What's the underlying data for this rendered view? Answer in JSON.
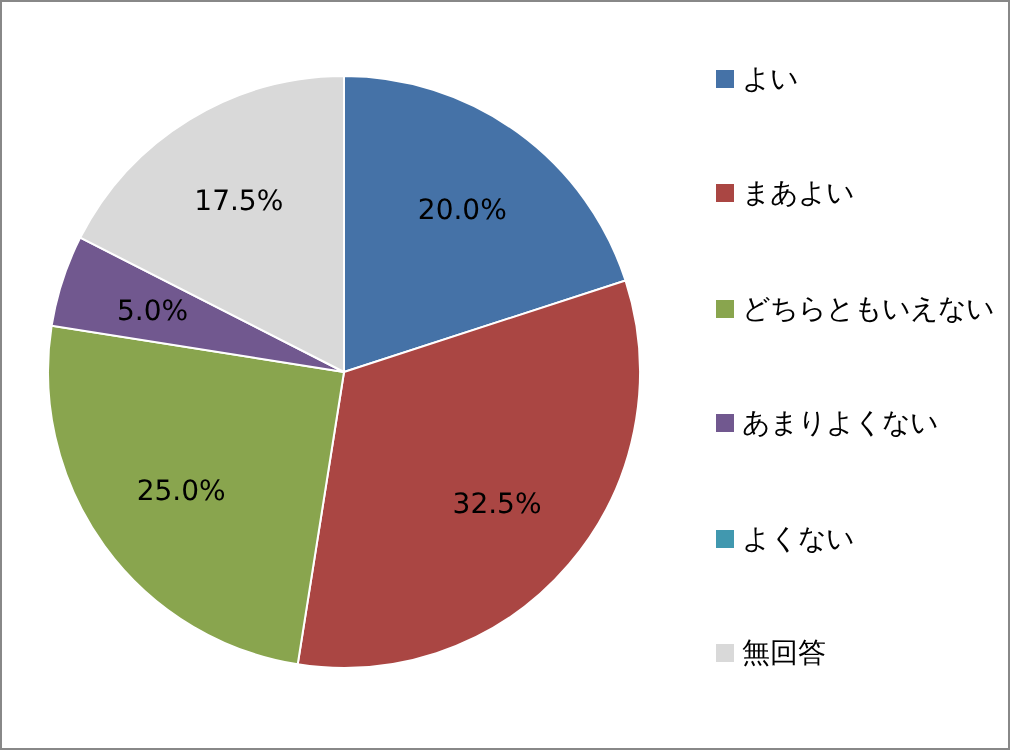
{
  "chart_data": {
    "type": "pie",
    "categories": [
      "よい",
      "まあよい",
      "どちらともいえない",
      "あまりよくない",
      "よくない",
      "無回答"
    ],
    "values": [
      20,
      32.5,
      25,
      5,
      0,
      17.5
    ],
    "colors": [
      "#4572a7",
      "#aa4643",
      "#89a54e",
      "#71588f",
      "#4198af",
      "#d9d9d9"
    ],
    "value_labels": [
      "20.0%",
      "32.5%",
      "25.0%",
      "5.0%",
      null,
      "17.5%"
    ],
    "legend": "right"
  }
}
